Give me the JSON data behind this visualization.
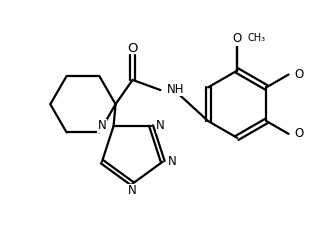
{
  "background_color": "#ffffff",
  "line_color": "#000000",
  "line_width": 1.6,
  "font_size": 8.5,
  "figsize": [
    3.3,
    2.44
  ],
  "dpi": 100,
  "xlim": [
    0,
    330
  ],
  "ylim": [
    0,
    244
  ]
}
